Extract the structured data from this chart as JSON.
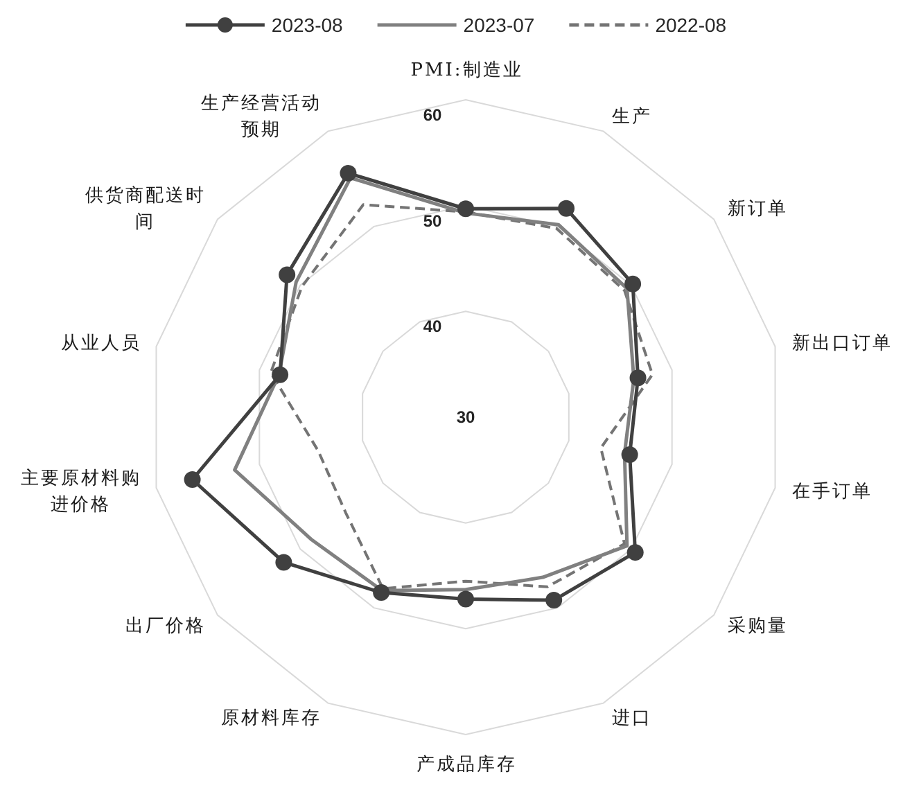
{
  "chart_data": {
    "type": "radar",
    "categories": [
      "PMI:制造业",
      "生产",
      "新订单",
      "新出口订单",
      "在手订单",
      "采购量",
      "进口",
      "产成品库存",
      "原材料库存",
      "出厂价格",
      "主要原材料购进价格",
      "从业人员",
      "供货商配送时间",
      "生产经营活动预期"
    ],
    "series": [
      {
        "name": "2023-08",
        "color": "#404040",
        "marker": "circle",
        "values": [
          49.7,
          51.9,
          50.2,
          46.7,
          45.9,
          50.5,
          49.2,
          47.2,
          48.4,
          52.0,
          56.5,
          48.0,
          51.6,
          55.6
        ]
      },
      {
        "name": "2023-07",
        "color": "#808080",
        "values": [
          49.3,
          50.2,
          49.5,
          46.3,
          45.4,
          49.5,
          46.8,
          46.3,
          48.2,
          48.6,
          52.4,
          48.1,
          50.5,
          55.1
        ]
      },
      {
        "name": "2022-08",
        "color": "#747474",
        "line_style": "dashed",
        "values": [
          49.4,
          49.8,
          49.2,
          48.1,
          43.1,
          49.2,
          47.8,
          45.5,
          48.0,
          44.5,
          44.3,
          48.9,
          49.8,
          52.3
        ]
      }
    ],
    "ylim": [
      30,
      60
    ],
    "yticks": [
      30,
      40,
      50,
      60
    ],
    "grid": true,
    "legend": "top"
  }
}
